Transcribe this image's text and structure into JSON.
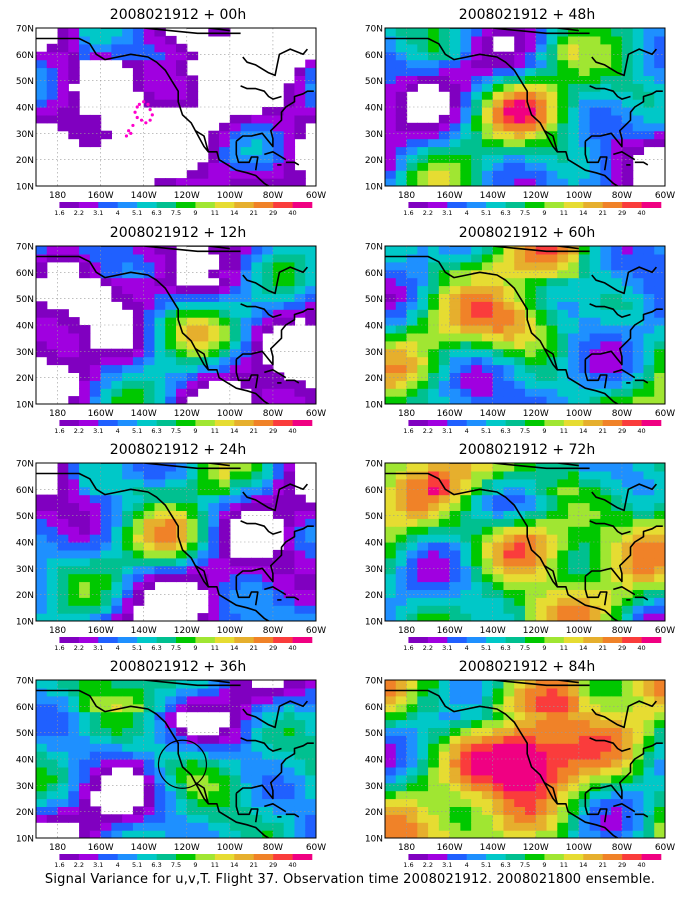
{
  "map_set": {
    "caption": "Signal Variance for u,v,T. Flight 37. Observation time 2008021912. 2008021800 ensemble.",
    "lat_labels": [
      "70N",
      "60N",
      "50N",
      "40N",
      "30N",
      "20N",
      "10N"
    ],
    "lon_labels": [
      "180",
      "160W",
      "140W",
      "120W",
      "100W",
      "80W",
      "60W"
    ],
    "colorbar": {
      "labels": [
        "1.6",
        "2.2",
        "3.1",
        "4",
        "5.1",
        "6.3",
        "7.5",
        "9",
        "11",
        "14",
        "21",
        "29",
        "40"
      ],
      "colors": [
        "#ffffff",
        "#8000c0",
        "#a000e0",
        "#2060ff",
        "#1e90ff",
        "#00c8c8",
        "#00c090",
        "#00c800",
        "#a0e632",
        "#e6dc32",
        "#e6af2d",
        "#f08228",
        "#fa3c3c",
        "#f00082"
      ]
    },
    "panels": [
      {
        "title": "2008021912 + 00h",
        "intensity": 0.15,
        "marker": "dots"
      },
      {
        "title": "2008021912 + 12h",
        "intensity": 0.35,
        "marker": "none"
      },
      {
        "title": "2008021912 + 24h",
        "intensity": 0.45,
        "marker": "none"
      },
      {
        "title": "2008021912 + 36h",
        "intensity": 0.5,
        "marker": "circle"
      },
      {
        "title": "2008021912 + 48h",
        "intensity": 0.55,
        "marker": "none"
      },
      {
        "title": "2008021912 + 60h",
        "intensity": 0.68,
        "marker": "none"
      },
      {
        "title": "2008021912 + 72h",
        "intensity": 0.78,
        "marker": "none"
      },
      {
        "title": "2008021912 + 84h",
        "intensity": 0.9,
        "marker": "none"
      }
    ]
  }
}
